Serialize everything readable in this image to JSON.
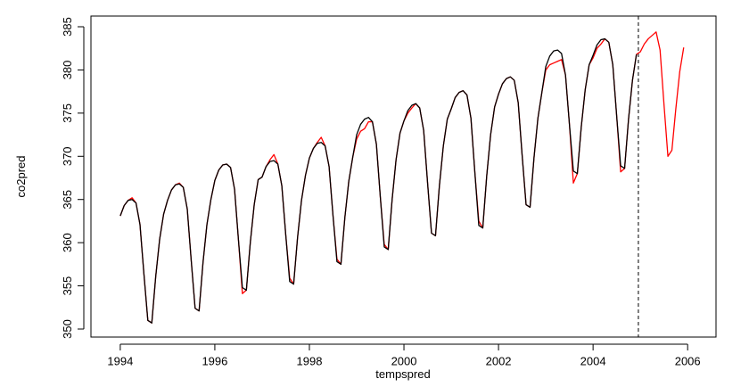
{
  "chart_data": {
    "type": "line",
    "xlabel": "tempspred",
    "ylabel": "co2pred",
    "xlim": [
      1993.38,
      2006.6
    ],
    "ylim": [
      349.07,
      386.24
    ],
    "xticks": [
      1994,
      1996,
      1998,
      2000,
      2002,
      2004,
      2006
    ],
    "yticks": [
      350,
      355,
      360,
      365,
      370,
      375,
      380,
      385
    ],
    "vline": 2004.958,
    "x": [
      1994,
      1994.083,
      1994.167,
      1994.25,
      1994.333,
      1994.417,
      1994.5,
      1994.583,
      1994.667,
      1994.75,
      1994.833,
      1994.917,
      1995,
      1995.083,
      1995.167,
      1995.25,
      1995.333,
      1995.417,
      1995.5,
      1995.583,
      1995.667,
      1995.75,
      1995.833,
      1995.917,
      1996,
      1996.083,
      1996.167,
      1996.25,
      1996.333,
      1996.417,
      1996.5,
      1996.583,
      1996.667,
      1996.75,
      1996.833,
      1996.917,
      1997,
      1997.083,
      1997.167,
      1997.25,
      1997.333,
      1997.417,
      1997.5,
      1997.583,
      1997.667,
      1997.75,
      1997.833,
      1997.917,
      1998,
      1998.083,
      1998.167,
      1998.25,
      1998.333,
      1998.417,
      1998.5,
      1998.583,
      1998.667,
      1998.75,
      1998.833,
      1998.917,
      1999,
      1999.083,
      1999.167,
      1999.25,
      1999.333,
      1999.417,
      1999.5,
      1999.583,
      1999.667,
      1999.75,
      1999.833,
      1999.917,
      2000,
      2000.083,
      2000.167,
      2000.25,
      2000.333,
      2000.417,
      2000.5,
      2000.583,
      2000.667,
      2000.75,
      2000.833,
      2000.917,
      2001,
      2001.083,
      2001.167,
      2001.25,
      2001.333,
      2001.417,
      2001.5,
      2001.583,
      2001.667,
      2001.75,
      2001.833,
      2001.917,
      2002,
      2002.083,
      2002.167,
      2002.25,
      2002.333,
      2002.417,
      2002.5,
      2002.583,
      2002.667,
      2002.75,
      2002.833,
      2002.917,
      2003,
      2003.083,
      2003.167,
      2003.25,
      2003.333,
      2003.417,
      2003.5,
      2003.583,
      2003.667,
      2003.75,
      2003.833,
      2003.917,
      2004,
      2004.083,
      2004.167,
      2004.25,
      2004.333,
      2004.417,
      2004.5,
      2004.583,
      2004.667,
      2004.75,
      2004.833,
      2004.917,
      2005,
      2005.083,
      2005.167,
      2005.25,
      2005.333,
      2005.417,
      2005.5,
      2005.583,
      2005.667,
      2005.75,
      2005.833,
      2005.917
    ],
    "series": [
      {
        "color": "#ff0000",
        "values": [
          363.1,
          364.3,
          364.9,
          365.2,
          364.6,
          362.1,
          356.4,
          351.0,
          350.7,
          356.1,
          360.4,
          363.3,
          364.9,
          366.1,
          366.7,
          366.9,
          366.4,
          363.9,
          358.0,
          352.4,
          352.1,
          357.7,
          362.1,
          365.0,
          367.2,
          368.4,
          369.0,
          369.1,
          368.7,
          366.2,
          360.3,
          354.1,
          354.5,
          360.0,
          364.4,
          367.3,
          367.6,
          368.8,
          369.6,
          370.2,
          369.1,
          366.6,
          360.9,
          355.9,
          355.2,
          360.6,
          364.9,
          367.8,
          369.8,
          370.9,
          371.6,
          372.2,
          371.2,
          368.8,
          363.1,
          358.1,
          357.5,
          362.9,
          367.1,
          369.9,
          372.0,
          372.9,
          373.2,
          374.0,
          374.0,
          371.4,
          365.3,
          359.8,
          359.2,
          365.0,
          369.6,
          372.7,
          374.1,
          375.0,
          375.6,
          376.1,
          375.6,
          373.0,
          366.9,
          361.1,
          360.8,
          366.6,
          371.2,
          374.3,
          375.5,
          376.8,
          377.4,
          377.6,
          377.1,
          374.4,
          368.1,
          362.5,
          361.7,
          367.7,
          372.5,
          375.7,
          377.2,
          378.4,
          379.0,
          379.2,
          378.8,
          376.2,
          370.1,
          364.4,
          364.1,
          369.8,
          374.4,
          377.4,
          380.0,
          380.6,
          380.8,
          381.0,
          381.2,
          379.4,
          373.7,
          366.9,
          368.0,
          373.4,
          377.7,
          380.6,
          381.4,
          382.5,
          383.0,
          383.6,
          383.2,
          380.6,
          374.6,
          368.2,
          368.6,
          374.3,
          378.8,
          381.8,
          382.1,
          383.0,
          383.6,
          384.0,
          384.4,
          382.3,
          376.0,
          370.0,
          370.7,
          375.5,
          379.8,
          382.6
        ]
      },
      {
        "color": "#000000",
        "values": [
          363.1,
          364.3,
          364.9,
          365.0,
          364.6,
          362.1,
          356.4,
          351.0,
          350.7,
          356.1,
          360.4,
          363.3,
          364.9,
          366.1,
          366.7,
          366.8,
          366.4,
          363.9,
          358.0,
          352.4,
          352.1,
          357.7,
          362.1,
          365.0,
          367.2,
          368.4,
          369.0,
          369.1,
          368.7,
          366.2,
          360.3,
          354.8,
          354.5,
          360.0,
          364.4,
          367.3,
          367.6,
          368.8,
          369.4,
          369.5,
          369.1,
          366.6,
          360.9,
          355.5,
          355.2,
          360.6,
          364.9,
          367.8,
          369.8,
          370.9,
          371.5,
          371.6,
          371.2,
          368.8,
          363.1,
          357.8,
          357.5,
          362.9,
          367.1,
          369.9,
          372.5,
          373.7,
          374.3,
          374.5,
          374.0,
          371.4,
          365.3,
          359.5,
          359.2,
          365.0,
          369.6,
          372.7,
          374.1,
          375.3,
          375.9,
          376.1,
          375.6,
          373.0,
          366.9,
          361.1,
          360.8,
          366.6,
          371.2,
          374.3,
          375.5,
          376.8,
          377.4,
          377.6,
          377.1,
          374.4,
          368.1,
          362.0,
          361.7,
          367.7,
          372.5,
          375.7,
          377.2,
          378.4,
          379.0,
          379.2,
          378.8,
          376.2,
          370.1,
          364.4,
          364.1,
          369.8,
          374.4,
          377.4,
          380.4,
          381.6,
          382.2,
          382.3,
          381.9,
          379.4,
          373.7,
          368.3,
          368.0,
          373.4,
          377.7,
          380.6,
          381.7,
          382.9,
          383.5,
          383.6,
          383.2,
          380.6,
          374.6,
          368.9,
          368.6,
          374.3,
          378.8,
          381.8,
          null,
          null,
          null,
          null,
          null,
          null,
          null,
          null,
          null,
          null,
          null,
          null
        ]
      }
    ]
  }
}
